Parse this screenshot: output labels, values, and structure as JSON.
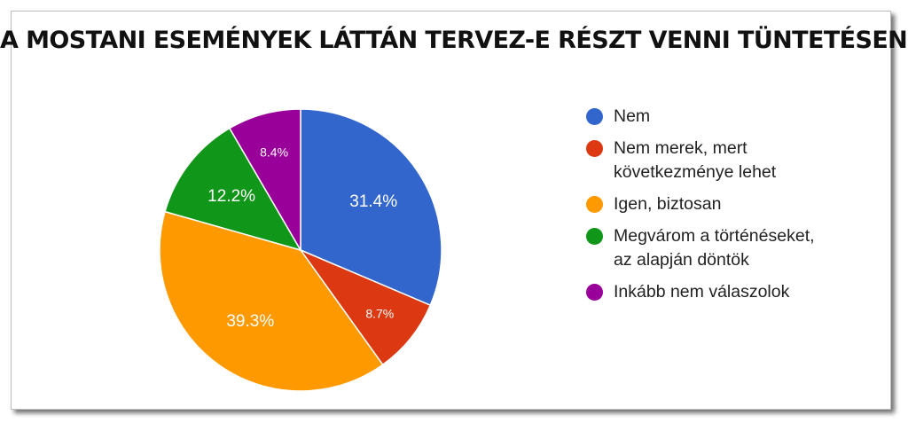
{
  "chart_data": {
    "type": "pie",
    "title": "A MOSTANI ESEMÉNYEK LÁTTÁN TERVEZ-E RÉSZT VENNI TÜNTETÉSEN?",
    "legend_position": "right",
    "slices": [
      {
        "label": "Nem",
        "value": 31.4,
        "display": "31.4%",
        "color": "#3366cc"
      },
      {
        "label": "Nem merek, mert következménye lehet",
        "value": 8.7,
        "display": "8.7%",
        "color": "#dc3912"
      },
      {
        "label": "Igen, biztosan",
        "value": 39.3,
        "display": "39.3%",
        "color": "#ff9900"
      },
      {
        "label": "Megvárom a történéseket, az alapján döntök",
        "value": 12.2,
        "display": "12.2%",
        "color": "#109618"
      },
      {
        "label": "Inkább nem válaszolok",
        "value": 8.4,
        "display": "8.4%",
        "color": "#990099"
      }
    ],
    "legend_lines": [
      [
        "Nem"
      ],
      [
        "Nem merek, mert",
        "következménye lehet"
      ],
      [
        "Igen, biztosan"
      ],
      [
        "Megvárom a történéseket,",
        "az alapján döntök"
      ],
      [
        "Inkább nem válaszolok"
      ]
    ]
  }
}
